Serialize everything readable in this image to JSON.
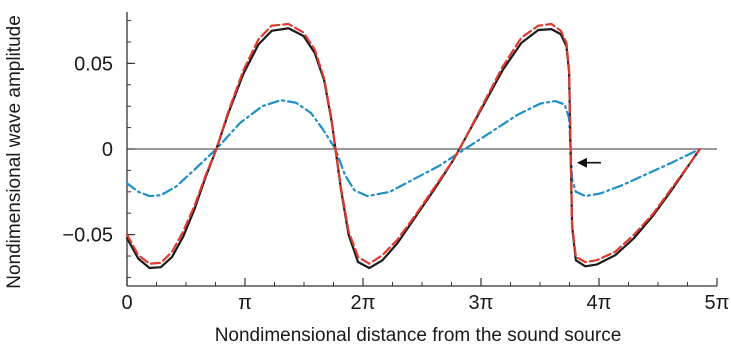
{
  "chart_data": {
    "type": "line",
    "title": "",
    "xlabel": "Nondimensional distance from the sound source",
    "ylabel": "Nondimensional wave amplitude",
    "xlim": [
      0,
      15.708
    ],
    "ylim": [
      -0.08,
      0.08
    ],
    "x_ticks": [
      {
        "value": 0,
        "label": "0"
      },
      {
        "value": 3.1416,
        "label": "π"
      },
      {
        "value": 6.2832,
        "label": "2π"
      },
      {
        "value": 9.4248,
        "label": "3π"
      },
      {
        "value": 12.5664,
        "label": "4π"
      },
      {
        "value": 15.708,
        "label": "5π"
      }
    ],
    "y_ticks": [
      {
        "value": 0.05,
        "label": "0.05"
      },
      {
        "value": 0,
        "label": "0"
      },
      {
        "value": -0.05,
        "label": "−0.05"
      }
    ],
    "grid": false,
    "zero_line": true,
    "annotation": {
      "type": "arrow",
      "points_to": [
        11.82,
        -0.008
      ]
    },
    "series": [
      {
        "color": "#1a1a1a",
        "style": "solid",
        "points": [
          [
            0,
            -0.052
          ],
          [
            0.3,
            -0.064
          ],
          [
            0.6,
            -0.0695
          ],
          [
            0.9,
            -0.069
          ],
          [
            1.2,
            -0.063
          ],
          [
            1.5,
            -0.051
          ],
          [
            1.8,
            -0.035
          ],
          [
            2.1,
            -0.016
          ],
          [
            2.38,
            0.0
          ],
          [
            2.7,
            0.021
          ],
          [
            3.1,
            0.044
          ],
          [
            3.5,
            0.061
          ],
          [
            3.85,
            0.069
          ],
          [
            4.3,
            0.0705
          ],
          [
            4.7,
            0.066
          ],
          [
            5.0,
            0.056
          ],
          [
            5.25,
            0.04
          ],
          [
            5.45,
            0.016
          ],
          [
            5.55,
            0.0
          ],
          [
            5.7,
            -0.024
          ],
          [
            5.9,
            -0.05
          ],
          [
            6.15,
            -0.066
          ],
          [
            6.45,
            -0.0695
          ],
          [
            6.8,
            -0.065
          ],
          [
            7.2,
            -0.055
          ],
          [
            7.7,
            -0.039
          ],
          [
            8.2,
            -0.023
          ],
          [
            8.7,
            -0.006
          ],
          [
            9.0,
            0.006
          ],
          [
            9.5,
            0.026
          ],
          [
            10.0,
            0.046
          ],
          [
            10.5,
            0.062
          ],
          [
            10.95,
            0.0695
          ],
          [
            11.3,
            0.07
          ],
          [
            11.55,
            0.067
          ],
          [
            11.7,
            0.06
          ],
          [
            11.77,
            0.045
          ],
          [
            11.81,
            0.0
          ],
          [
            11.85,
            -0.045
          ],
          [
            11.95,
            -0.065
          ],
          [
            12.2,
            -0.0685
          ],
          [
            12.5,
            -0.0675
          ],
          [
            13.0,
            -0.062
          ],
          [
            13.5,
            -0.052
          ],
          [
            14.0,
            -0.039
          ],
          [
            14.5,
            -0.024
          ],
          [
            15.0,
            -0.008
          ],
          [
            15.25,
            0.0
          ]
        ]
      },
      {
        "color": "#e03a2e",
        "style": "dashed",
        "points": [
          [
            0,
            -0.05
          ],
          [
            0.3,
            -0.062
          ],
          [
            0.6,
            -0.067
          ],
          [
            0.9,
            -0.0665
          ],
          [
            1.2,
            -0.06
          ],
          [
            1.5,
            -0.048
          ],
          [
            1.8,
            -0.033
          ],
          [
            2.1,
            -0.015
          ],
          [
            2.38,
            0.0
          ],
          [
            2.7,
            0.022
          ],
          [
            3.1,
            0.046
          ],
          [
            3.5,
            0.064
          ],
          [
            3.85,
            0.072
          ],
          [
            4.3,
            0.073
          ],
          [
            4.7,
            0.068
          ],
          [
            5.0,
            0.058
          ],
          [
            5.25,
            0.041
          ],
          [
            5.45,
            0.017
          ],
          [
            5.55,
            0.0
          ],
          [
            5.7,
            -0.023
          ],
          [
            5.9,
            -0.048
          ],
          [
            6.15,
            -0.063
          ],
          [
            6.45,
            -0.067
          ],
          [
            6.8,
            -0.062
          ],
          [
            7.2,
            -0.053
          ],
          [
            7.7,
            -0.038
          ],
          [
            8.2,
            -0.022
          ],
          [
            8.7,
            -0.006
          ],
          [
            9.0,
            0.006
          ],
          [
            9.5,
            0.027
          ],
          [
            10.0,
            0.048
          ],
          [
            10.5,
            0.065
          ],
          [
            10.95,
            0.072
          ],
          [
            11.3,
            0.073
          ],
          [
            11.55,
            0.069
          ],
          [
            11.7,
            0.062
          ],
          [
            11.77,
            0.046
          ],
          [
            11.81,
            0.0
          ],
          [
            11.85,
            -0.044
          ],
          [
            11.95,
            -0.063
          ],
          [
            12.2,
            -0.066
          ],
          [
            12.5,
            -0.065
          ],
          [
            13.0,
            -0.06
          ],
          [
            13.5,
            -0.05
          ],
          [
            14.0,
            -0.038
          ],
          [
            14.5,
            -0.023
          ],
          [
            15.0,
            -0.008
          ],
          [
            15.25,
            0.0
          ]
        ]
      },
      {
        "color": "#1f8fc7",
        "style": "dashdot",
        "points": [
          [
            0,
            -0.02
          ],
          [
            0.3,
            -0.025
          ],
          [
            0.6,
            -0.0275
          ],
          [
            0.9,
            -0.027
          ],
          [
            1.3,
            -0.022
          ],
          [
            1.8,
            -0.012
          ],
          [
            2.38,
            0.0
          ],
          [
            3.0,
            0.015
          ],
          [
            3.6,
            0.025
          ],
          [
            4.1,
            0.0285
          ],
          [
            4.5,
            0.027
          ],
          [
            4.9,
            0.021
          ],
          [
            5.2,
            0.012
          ],
          [
            5.55,
            0.0
          ],
          [
            5.8,
            -0.015
          ],
          [
            6.05,
            -0.024
          ],
          [
            6.4,
            -0.0275
          ],
          [
            7.0,
            -0.025
          ],
          [
            7.6,
            -0.018
          ],
          [
            8.3,
            -0.01
          ],
          [
            9.0,
            0.0
          ],
          [
            9.7,
            0.01
          ],
          [
            10.4,
            0.02
          ],
          [
            11.0,
            0.0265
          ],
          [
            11.4,
            0.028
          ],
          [
            11.65,
            0.026
          ],
          [
            11.77,
            0.018
          ],
          [
            11.81,
            0.0
          ],
          [
            11.85,
            -0.018
          ],
          [
            11.95,
            -0.025
          ],
          [
            12.2,
            -0.0275
          ],
          [
            12.6,
            -0.026
          ],
          [
            13.2,
            -0.021
          ],
          [
            13.8,
            -0.015
          ],
          [
            14.5,
            -0.008
          ],
          [
            15.25,
            0.0
          ]
        ]
      }
    ]
  }
}
